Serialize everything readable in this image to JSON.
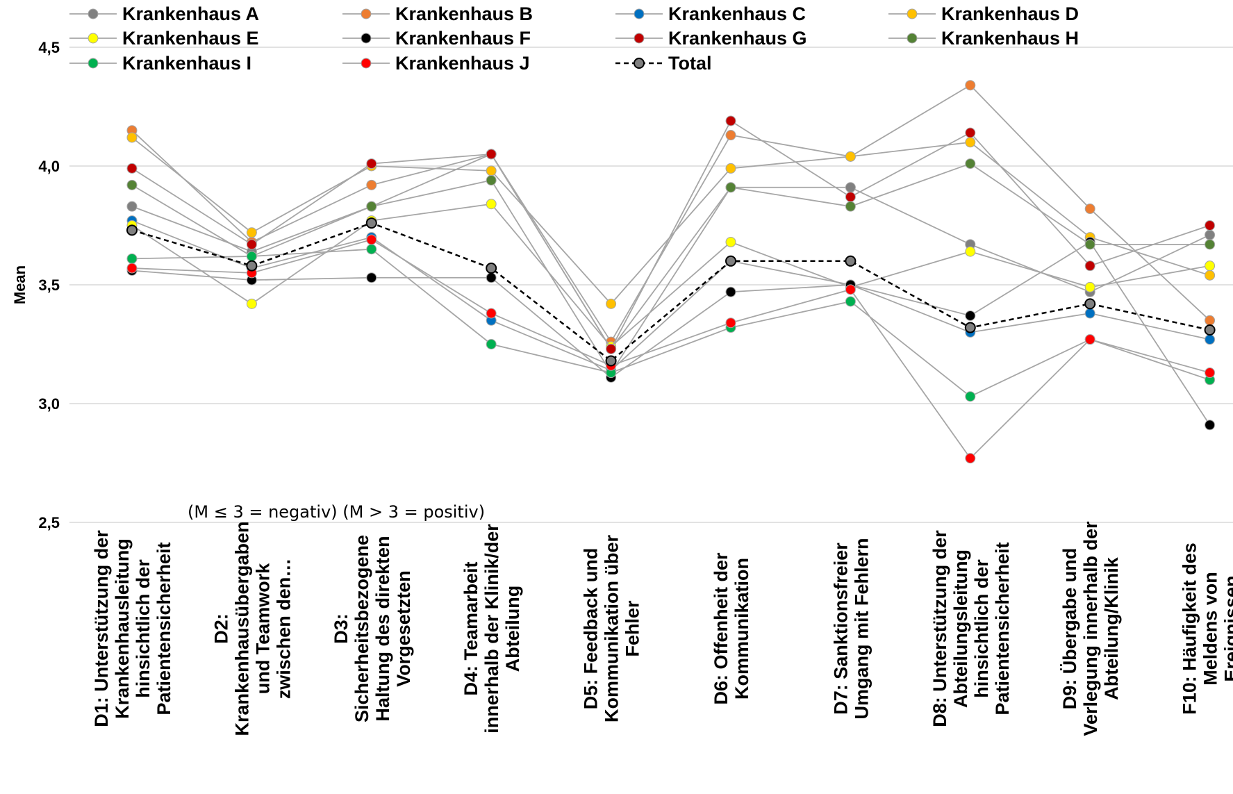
{
  "chart_data": {
    "type": "line",
    "title": "",
    "xlabel": "",
    "ylabel": "Mean",
    "ylim": [
      2.5,
      4.5
    ],
    "yticks": [
      "2,5",
      "3,0",
      "3,5",
      "4,0",
      "4,5"
    ],
    "ytick_values": [
      2.5,
      3.0,
      3.5,
      4.0,
      4.5
    ],
    "grid": true,
    "legend_position": "top",
    "annotation": "(M ≤ 3 = negativ) (M > 3 = positiv)",
    "categories": [
      [
        "D1: Unterstützung der",
        "Krankenhausleitung",
        "hinsichtlich der",
        "Patientensicherheit"
      ],
      [
        "D2:",
        "Krankenhausübergaben",
        "und Teamwork",
        "zwischen den…"
      ],
      [
        "D3:",
        "Sicherheitsbezogene",
        "Haltung des direkten",
        "Vorgesetzten"
      ],
      [
        "D4: Teamarbeit",
        "innerhalb der Klinik/der",
        "Abteilung"
      ],
      [
        "D5: Feedback und",
        "Kommunikation über",
        "Fehler"
      ],
      [
        "D6: Offenheit der",
        "Kommunikation"
      ],
      [
        "D7: Sanktionsfreier",
        "Umgang mit Fehlern"
      ],
      [
        "D8: Unterstützung der",
        "Abteilungsleitung",
        "hinsichtlich der",
        "Patientensicherheit"
      ],
      [
        "D9: Übergabe und",
        "Verlegung innerhalb der",
        "Abteilung/Klinik"
      ],
      [
        "F10: Häufigkeit des",
        "Meldens von",
        "Ereignissen"
      ]
    ],
    "series": [
      {
        "name": "Krankenhaus A",
        "color": "#808080",
        "values": [
          3.83,
          3.64,
          3.83,
          4.05,
          3.23,
          3.91,
          3.91,
          3.67,
          3.47,
          3.71
        ]
      },
      {
        "name": "Krankenhaus B",
        "color": "#ED7D31",
        "values": [
          4.15,
          3.68,
          3.92,
          4.05,
          3.26,
          4.13,
          4.04,
          4.34,
          3.82,
          3.35
        ]
      },
      {
        "name": "Krankenhaus C",
        "color": "#0070C0",
        "values": [
          3.77,
          3.57,
          3.7,
          3.35,
          3.14,
          3.6,
          3.5,
          3.3,
          3.38,
          3.27
        ]
      },
      {
        "name": "Krankenhaus D",
        "color": "#FFC000",
        "values": [
          4.12,
          3.72,
          4.0,
          3.98,
          3.42,
          3.99,
          4.04,
          4.1,
          3.7,
          3.54
        ]
      },
      {
        "name": "Krankenhaus E",
        "color": "#FFFF00",
        "values": [
          3.75,
          3.42,
          3.77,
          3.84,
          3.24,
          3.68,
          3.49,
          3.64,
          3.49,
          3.58
        ]
      },
      {
        "name": "Krankenhaus F",
        "color": "#000000",
        "values": [
          3.56,
          3.52,
          3.53,
          3.53,
          3.11,
          3.47,
          3.5,
          3.37,
          3.68,
          2.91
        ]
      },
      {
        "name": "Krankenhaus G",
        "color": "#C00000",
        "values": [
          3.99,
          3.67,
          4.01,
          4.05,
          3.23,
          4.19,
          3.87,
          4.14,
          3.58,
          3.75
        ]
      },
      {
        "name": "Krankenhaus H",
        "color": "#548235",
        "values": [
          3.92,
          3.62,
          3.83,
          3.94,
          3.13,
          3.91,
          3.83,
          4.01,
          3.67,
          3.67
        ]
      },
      {
        "name": "Krankenhaus I",
        "color": "#00B050",
        "values": [
          3.61,
          3.62,
          3.65,
          3.25,
          3.13,
          3.32,
          3.43,
          3.03,
          3.27,
          3.1
        ]
      },
      {
        "name": "Krankenhaus J",
        "color": "#FF0000",
        "values": [
          3.57,
          3.55,
          3.69,
          3.38,
          3.16,
          3.34,
          3.48,
          2.77,
          3.27,
          3.13
        ]
      },
      {
        "name": "Total",
        "color": "#808080",
        "dashed": true,
        "values": [
          3.73,
          3.58,
          3.76,
          3.57,
          3.18,
          3.6,
          3.6,
          3.32,
          3.42,
          3.31
        ]
      }
    ]
  }
}
